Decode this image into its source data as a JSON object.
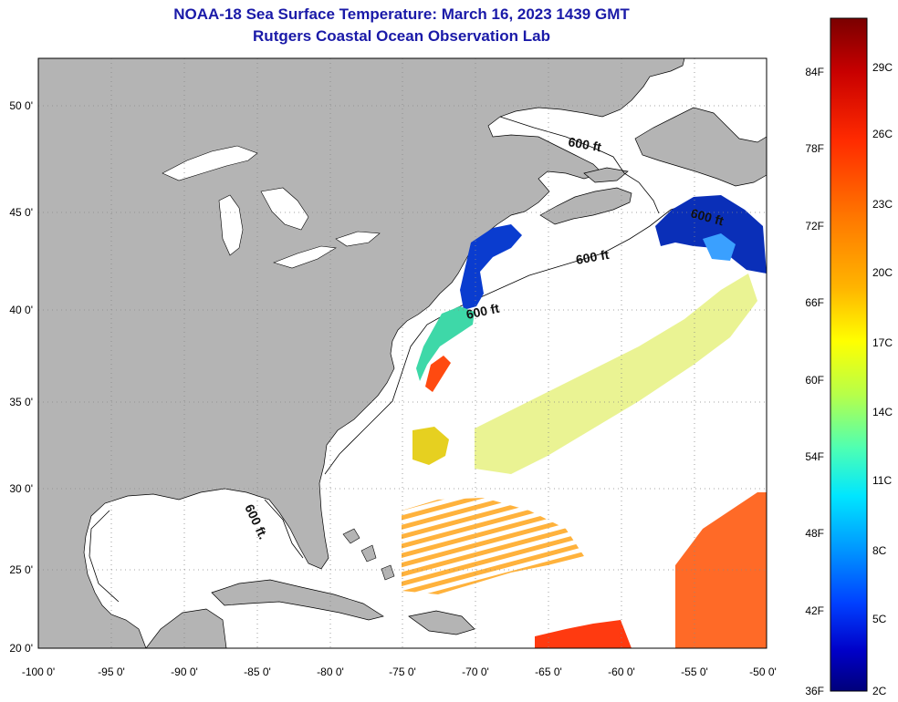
{
  "header": {
    "title": "NOAA-18 Sea Surface Temperature:  March 16, 2023 1439 GMT",
    "subtitle": "Rutgers Coastal Ocean Observation Lab"
  },
  "axes": {
    "lon_labels": [
      "-100 0'",
      "-95 0'",
      "-90 0'",
      "-85 0'",
      "-80 0'",
      "-75 0'",
      "-70 0'",
      "-65 0'",
      "-60 0'",
      "-55 0'",
      "-50 0'"
    ],
    "lat_labels": [
      "50 0'",
      "45 0'",
      "40 0'",
      "35 0'",
      "30 0'",
      "25 0'",
      "20 0'"
    ],
    "lon_range": [
      -100,
      -50
    ],
    "lat_range": [
      20,
      52.5
    ],
    "grid": "dotted"
  },
  "depth_labels": [
    "600 ft",
    "600 ft",
    "600 ft",
    "600 ft",
    "600 ft."
  ],
  "colorbar": {
    "fahrenheit": [
      "84F",
      "78F",
      "72F",
      "66F",
      "60F",
      "54F",
      "48F",
      "42F",
      "36F"
    ],
    "celsius": [
      "29C",
      "26C",
      "23C",
      "20C",
      "17C",
      "14C",
      "11C",
      "8C",
      "5C",
      "2C"
    ],
    "colors": [
      "#7a0000",
      "#c80000",
      "#ff2a00",
      "#ff7a00",
      "#ffb400",
      "#ffff00",
      "#b6ff4a",
      "#4dffb4",
      "#00e6ff",
      "#0096ff",
      "#0040ff",
      "#0000c8",
      "#00007a"
    ]
  },
  "colors": {
    "land": "#b4b4b4",
    "ocean": "#ffffff",
    "title": "#1a1aa8"
  }
}
